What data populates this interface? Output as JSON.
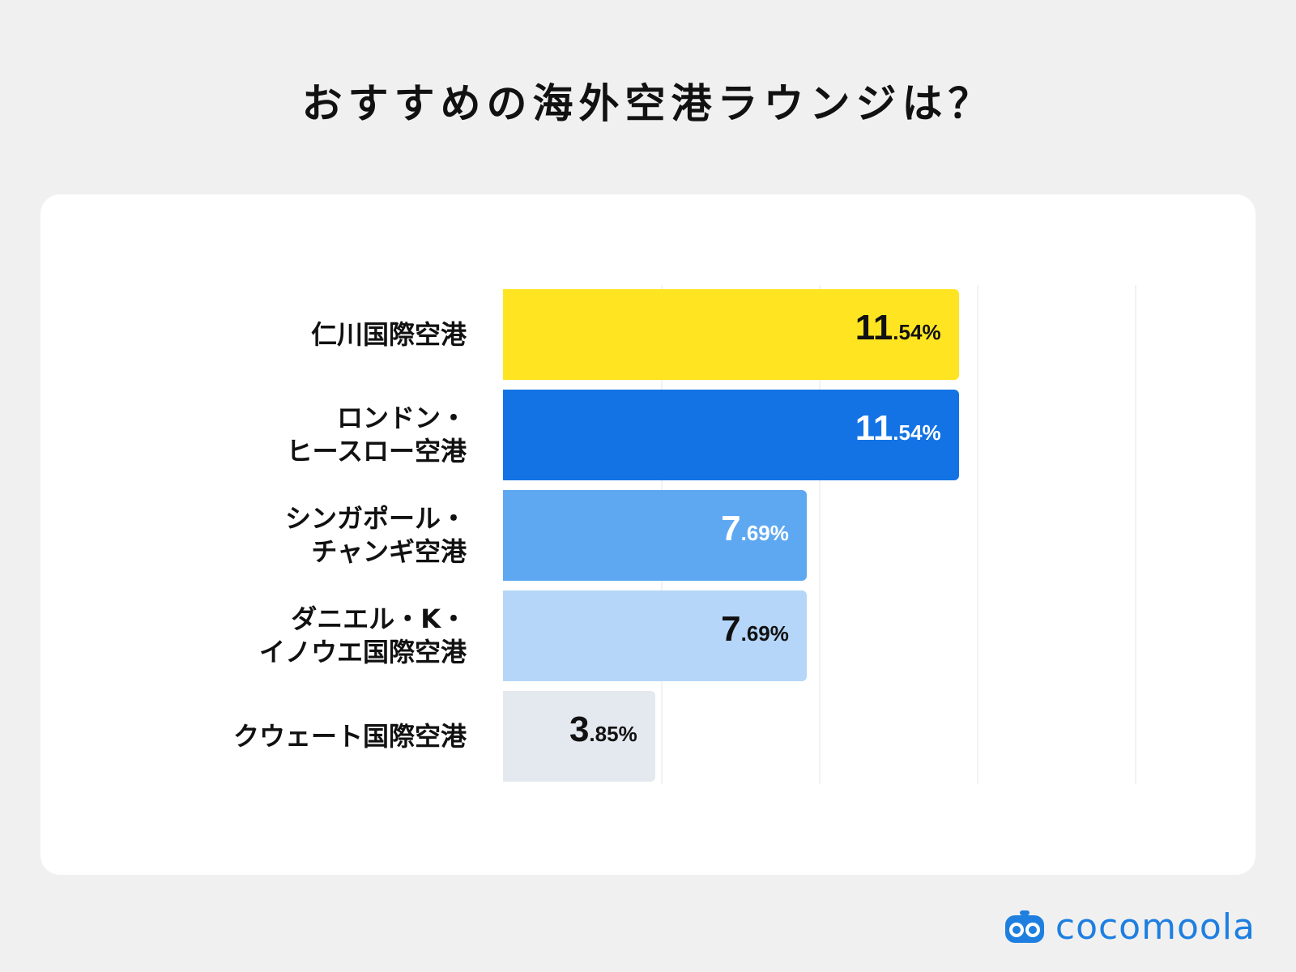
{
  "title": "おすすめの海外空港ラウンジは？",
  "logo": {
    "text": "cocomoola",
    "icon": "robot-face-icon",
    "color": "#1e7fe0"
  },
  "chart_data": {
    "type": "bar",
    "orientation": "horizontal",
    "title": "おすすめの海外空港ラウンジは？",
    "xlim": [
      0,
      15
    ],
    "grid": true,
    "categories": [
      "仁川国際空港",
      "ロンドン・ヒースロー空港",
      "シンガポール・チャンギ空港",
      "ダニエル・K・イノウエ国際空港",
      "クウェート国際空港"
    ],
    "values": [
      11.54,
      11.54,
      7.69,
      7.69,
      3.85
    ],
    "label_lines": [
      [
        "仁川国際空港"
      ],
      [
        "ロンドン・",
        "ヒースロー空港"
      ],
      [
        "シンガポール・",
        "チャンギ空港"
      ],
      [
        "ダニエル・K・",
        "イノウエ国際空港"
      ],
      [
        "クウェート国際空港"
      ]
    ],
    "data_labels": [
      {
        "int": "11",
        "dec": ".54%"
      },
      {
        "int": "11",
        "dec": ".54%"
      },
      {
        "int": "7",
        "dec": ".69%"
      },
      {
        "int": "7",
        "dec": ".69%"
      },
      {
        "int": "3",
        "dec": ".85%"
      }
    ],
    "bar_colors": [
      "#ffe422",
      "#1373e5",
      "#5ea8f2",
      "#b5d6f8",
      "#e4e8ef"
    ],
    "label_colors": [
      "#111111",
      "#ffffff",
      "#ffffff",
      "#111111",
      "#111111"
    ]
  }
}
